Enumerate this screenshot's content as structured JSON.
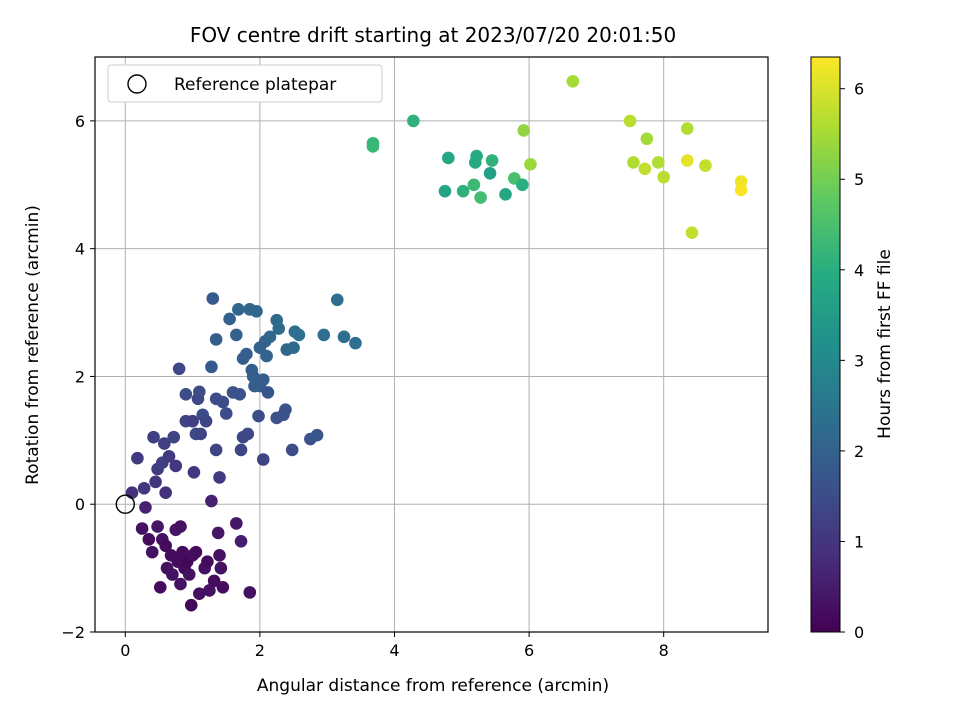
{
  "chart_data": {
    "type": "scatter",
    "title": "FOV centre drift starting at 2023/07/20 20:01:50",
    "xlabel": "Angular distance from reference (arcmin)",
    "ylabel": "Rotation from reference (arcmin)",
    "xlim": [
      -0.45,
      9.55
    ],
    "ylim": [
      -2.0,
      7.0
    ],
    "xticks": [
      0,
      2,
      4,
      6,
      8
    ],
    "yticks": [
      -2,
      0,
      2,
      4,
      6
    ],
    "grid": true,
    "legend": {
      "placement": "top-left",
      "label": "Reference platepar"
    },
    "reference_point": {
      "x": 0,
      "y": 0
    },
    "colorbar": {
      "label": "Hours from first FF file",
      "range": [
        0,
        6.35
      ],
      "ticks": [
        0,
        1,
        2,
        3,
        4,
        5,
        6
      ],
      "colormap": "viridis"
    },
    "points": [
      {
        "x": 0.1,
        "y": 0.18,
        "h": 0.9
      },
      {
        "x": 0.18,
        "y": 0.72,
        "h": 1.1
      },
      {
        "x": 0.25,
        "y": -0.38,
        "h": 0.3
      },
      {
        "x": 0.28,
        "y": 0.25,
        "h": 1.0
      },
      {
        "x": 0.3,
        "y": -0.05,
        "h": 0.6
      },
      {
        "x": 0.35,
        "y": -0.55,
        "h": 0.2
      },
      {
        "x": 0.4,
        "y": -0.75,
        "h": 0.3
      },
      {
        "x": 0.42,
        "y": 1.05,
        "h": 1.2
      },
      {
        "x": 0.45,
        "y": 0.35,
        "h": 1.0
      },
      {
        "x": 0.48,
        "y": 0.55,
        "h": 1.1
      },
      {
        "x": 0.48,
        "y": -0.35,
        "h": 0.4
      },
      {
        "x": 0.52,
        "y": -1.3,
        "h": 0.2
      },
      {
        "x": 0.55,
        "y": 0.65,
        "h": 1.2
      },
      {
        "x": 0.55,
        "y": -0.55,
        "h": 0.3
      },
      {
        "x": 0.58,
        "y": 0.95,
        "h": 1.2
      },
      {
        "x": 0.6,
        "y": -0.65,
        "h": 0.2
      },
      {
        "x": 0.62,
        "y": -1.0,
        "h": 0.3
      },
      {
        "x": 0.6,
        "y": 0.18,
        "h": 0.9
      },
      {
        "x": 0.65,
        "y": 0.75,
        "h": 1.1
      },
      {
        "x": 0.68,
        "y": -0.8,
        "h": 0.2
      },
      {
        "x": 0.7,
        "y": -1.1,
        "h": 0.3
      },
      {
        "x": 0.72,
        "y": 1.05,
        "h": 1.3
      },
      {
        "x": 0.75,
        "y": 0.6,
        "h": 1.0
      },
      {
        "x": 0.75,
        "y": -0.4,
        "h": 0.4
      },
      {
        "x": 0.78,
        "y": -0.9,
        "h": 0.2
      },
      {
        "x": 0.8,
        "y": 2.12,
        "h": 1.4
      },
      {
        "x": 0.82,
        "y": -1.25,
        "h": 0.3
      },
      {
        "x": 0.82,
        "y": -0.35,
        "h": 0.3
      },
      {
        "x": 0.85,
        "y": -0.75,
        "h": 0.2
      },
      {
        "x": 0.88,
        "y": -1.0,
        "h": 0.2
      },
      {
        "x": 0.9,
        "y": 1.72,
        "h": 1.5
      },
      {
        "x": 0.9,
        "y": 1.3,
        "h": 1.3
      },
      {
        "x": 0.92,
        "y": -0.9,
        "h": 0.1
      },
      {
        "x": 0.95,
        "y": -1.1,
        "h": 0.3
      },
      {
        "x": 0.98,
        "y": -1.58,
        "h": 0.1
      },
      {
        "x": 1.0,
        "y": -0.8,
        "h": 0.2
      },
      {
        "x": 1.0,
        "y": 1.3,
        "h": 1.2
      },
      {
        "x": 1.02,
        "y": 0.5,
        "h": 1.0
      },
      {
        "x": 1.05,
        "y": 1.1,
        "h": 1.4
      },
      {
        "x": 1.05,
        "y": -0.75,
        "h": 0.2
      },
      {
        "x": 1.08,
        "y": 1.65,
        "h": 1.4
      },
      {
        "x": 1.1,
        "y": -1.4,
        "h": 0.3
      },
      {
        "x": 1.1,
        "y": 1.76,
        "h": 1.5
      },
      {
        "x": 1.12,
        "y": 1.1,
        "h": 1.3
      },
      {
        "x": 1.15,
        "y": 1.4,
        "h": 1.5
      },
      {
        "x": 1.18,
        "y": -1.0,
        "h": 0.3
      },
      {
        "x": 1.2,
        "y": 1.3,
        "h": 1.3
      },
      {
        "x": 1.22,
        "y": -0.9,
        "h": 0.2
      },
      {
        "x": 1.25,
        "y": -1.35,
        "h": 0.3
      },
      {
        "x": 1.28,
        "y": 0.05,
        "h": 0.6
      },
      {
        "x": 1.28,
        "y": 2.15,
        "h": 1.8
      },
      {
        "x": 1.3,
        "y": 3.22,
        "h": 1.8
      },
      {
        "x": 1.32,
        "y": -1.2,
        "h": 0.2
      },
      {
        "x": 1.35,
        "y": 1.65,
        "h": 1.5
      },
      {
        "x": 1.35,
        "y": 0.85,
        "h": 1.3
      },
      {
        "x": 1.35,
        "y": 2.58,
        "h": 1.9
      },
      {
        "x": 1.38,
        "y": -0.45,
        "h": 0.4
      },
      {
        "x": 1.4,
        "y": -0.8,
        "h": 0.3
      },
      {
        "x": 1.4,
        "y": 0.42,
        "h": 1.1
      },
      {
        "x": 1.42,
        "y": -1.0,
        "h": 0.3
      },
      {
        "x": 1.45,
        "y": -1.3,
        "h": 0.2
      },
      {
        "x": 1.45,
        "y": 1.6,
        "h": 1.5
      },
      {
        "x": 1.5,
        "y": 1.42,
        "h": 1.5
      },
      {
        "x": 1.55,
        "y": 2.9,
        "h": 2.0
      },
      {
        "x": 1.6,
        "y": 1.75,
        "h": 1.6
      },
      {
        "x": 1.65,
        "y": -0.3,
        "h": 0.4
      },
      {
        "x": 1.65,
        "y": 2.65,
        "h": 2.0
      },
      {
        "x": 1.68,
        "y": 3.05,
        "h": 2.1
      },
      {
        "x": 1.7,
        "y": 1.72,
        "h": 1.6
      },
      {
        "x": 1.72,
        "y": -0.58,
        "h": 0.5
      },
      {
        "x": 1.72,
        "y": 0.85,
        "h": 1.3
      },
      {
        "x": 1.75,
        "y": 1.05,
        "h": 1.4
      },
      {
        "x": 1.75,
        "y": 2.28,
        "h": 1.9
      },
      {
        "x": 1.8,
        "y": 2.35,
        "h": 1.9
      },
      {
        "x": 1.82,
        "y": 1.1,
        "h": 1.4
      },
      {
        "x": 1.85,
        "y": -1.38,
        "h": 0.3
      },
      {
        "x": 1.85,
        "y": 3.05,
        "h": 2.1
      },
      {
        "x": 1.88,
        "y": 2.1,
        "h": 1.9
      },
      {
        "x": 1.9,
        "y": 2.0,
        "h": 1.9
      },
      {
        "x": 1.92,
        "y": 1.85,
        "h": 1.9
      },
      {
        "x": 1.95,
        "y": 3.02,
        "h": 2.1
      },
      {
        "x": 1.98,
        "y": 1.38,
        "h": 1.5
      },
      {
        "x": 2.0,
        "y": 2.45,
        "h": 2.0
      },
      {
        "x": 2.0,
        "y": 1.85,
        "h": 1.9
      },
      {
        "x": 2.05,
        "y": 0.7,
        "h": 1.3
      },
      {
        "x": 2.05,
        "y": 1.95,
        "h": 1.9
      },
      {
        "x": 2.08,
        "y": 2.55,
        "h": 2.0
      },
      {
        "x": 2.1,
        "y": 2.32,
        "h": 2.0
      },
      {
        "x": 2.12,
        "y": 1.75,
        "h": 1.7
      },
      {
        "x": 2.15,
        "y": 2.62,
        "h": 2.1
      },
      {
        "x": 2.25,
        "y": 2.88,
        "h": 2.2
      },
      {
        "x": 2.25,
        "y": 1.35,
        "h": 1.6
      },
      {
        "x": 2.28,
        "y": 2.75,
        "h": 2.2
      },
      {
        "x": 2.35,
        "y": 1.4,
        "h": 1.6
      },
      {
        "x": 2.38,
        "y": 1.48,
        "h": 1.6
      },
      {
        "x": 2.4,
        "y": 2.42,
        "h": 2.1
      },
      {
        "x": 2.48,
        "y": 0.85,
        "h": 1.5
      },
      {
        "x": 2.5,
        "y": 2.45,
        "h": 2.2
      },
      {
        "x": 2.52,
        "y": 2.7,
        "h": 2.3
      },
      {
        "x": 2.58,
        "y": 2.65,
        "h": 2.3
      },
      {
        "x": 2.75,
        "y": 1.02,
        "h": 1.6
      },
      {
        "x": 2.85,
        "y": 1.08,
        "h": 1.7
      },
      {
        "x": 2.95,
        "y": 2.65,
        "h": 2.3
      },
      {
        "x": 3.15,
        "y": 3.2,
        "h": 2.3
      },
      {
        "x": 3.25,
        "y": 2.62,
        "h": 2.3
      },
      {
        "x": 3.42,
        "y": 2.52,
        "h": 2.3
      },
      {
        "x": 3.68,
        "y": 5.65,
        "h": 4.2
      },
      {
        "x": 3.68,
        "y": 5.6,
        "h": 4.25
      },
      {
        "x": 4.28,
        "y": 6.0,
        "h": 4.1
      },
      {
        "x": 4.75,
        "y": 4.9,
        "h": 3.7
      },
      {
        "x": 4.8,
        "y": 5.42,
        "h": 3.8
      },
      {
        "x": 5.02,
        "y": 4.9,
        "h": 4.1
      },
      {
        "x": 5.18,
        "y": 5.0,
        "h": 4.3
      },
      {
        "x": 5.2,
        "y": 5.35,
        "h": 3.9
      },
      {
        "x": 5.22,
        "y": 5.45,
        "h": 3.9
      },
      {
        "x": 5.28,
        "y": 4.8,
        "h": 4.4
      },
      {
        "x": 5.42,
        "y": 5.18,
        "h": 3.6
      },
      {
        "x": 5.45,
        "y": 5.38,
        "h": 4.1
      },
      {
        "x": 5.65,
        "y": 4.85,
        "h": 3.8
      },
      {
        "x": 5.78,
        "y": 5.1,
        "h": 4.5
      },
      {
        "x": 5.9,
        "y": 5.0,
        "h": 4.0
      },
      {
        "x": 5.92,
        "y": 5.85,
        "h": 5.3
      },
      {
        "x": 6.02,
        "y": 5.32,
        "h": 5.4
      },
      {
        "x": 6.65,
        "y": 6.62,
        "h": 5.5
      },
      {
        "x": 7.5,
        "y": 6.0,
        "h": 5.7
      },
      {
        "x": 7.55,
        "y": 5.35,
        "h": 5.6
      },
      {
        "x": 7.72,
        "y": 5.25,
        "h": 5.8
      },
      {
        "x": 7.75,
        "y": 5.72,
        "h": 5.5
      },
      {
        "x": 7.92,
        "y": 5.35,
        "h": 5.6
      },
      {
        "x": 8.0,
        "y": 5.12,
        "h": 5.7
      },
      {
        "x": 8.35,
        "y": 5.88,
        "h": 5.6
      },
      {
        "x": 8.35,
        "y": 5.38,
        "h": 6.1
      },
      {
        "x": 8.42,
        "y": 4.25,
        "h": 5.8
      },
      {
        "x": 8.62,
        "y": 5.3,
        "h": 5.8
      },
      {
        "x": 9.15,
        "y": 5.05,
        "h": 6.2
      },
      {
        "x": 9.15,
        "y": 4.92,
        "h": 6.3
      }
    ]
  }
}
